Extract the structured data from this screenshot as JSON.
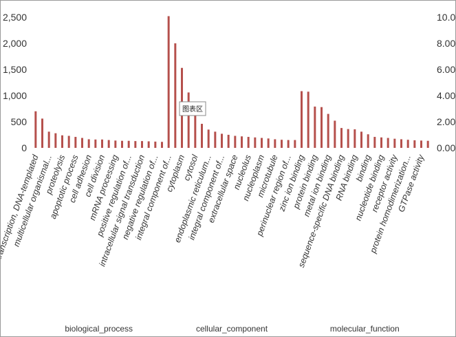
{
  "chart_data": {
    "type": "bar",
    "title": "",
    "xlabel": "",
    "ylabel": "",
    "ylim": [
      0,
      2500
    ],
    "y2lim": [
      0,
      10
    ],
    "y_ticks": [
      "0",
      "500",
      "1,000",
      "1,500",
      "2,000",
      "2,500"
    ],
    "y2_ticks": [
      "0.00",
      "2.00",
      "4.00",
      "6.00",
      "8.00",
      "10.00"
    ],
    "bar_color": "#b5504c",
    "categories": [
      "transcription, DNA-templated",
      "",
      "multicellular organismal...",
      "",
      "proteolysis",
      "",
      "apoptotic process",
      "",
      "cell adhesion",
      "",
      "cell division",
      "",
      "mRNA processing",
      "",
      "positive regulation of...",
      "",
      "intracellular signal transduction",
      "",
      "negative regulation of...",
      "",
      "integral component of...",
      "",
      "cytoplasm",
      "",
      "cytosol",
      "",
      "endoplasmic reticulum...",
      "",
      "integral component of...",
      "",
      "extracellular space",
      "",
      "nucleolus",
      "",
      "nucleoplasm",
      "",
      "microtubule",
      "",
      "perinuclear region of...",
      "",
      "zinc ion binding",
      "",
      "protein binding",
      "",
      "metal ion binding",
      "",
      "sequence-specific DNA binding",
      "",
      "RNA binding",
      "",
      "binding",
      "",
      "nucleotide binding",
      "",
      "receptor activity",
      "",
      "protein homodimerization...",
      "",
      "GTPase activity",
      ""
    ],
    "values": [
      700,
      560,
      310,
      280,
      240,
      230,
      210,
      190,
      165,
      160,
      160,
      150,
      140,
      135,
      135,
      130,
      130,
      125,
      120,
      115,
      2520,
      2000,
      1530,
      1060,
      620,
      460,
      350,
      310,
      270,
      250,
      230,
      220,
      210,
      200,
      190,
      180,
      165,
      155,
      150,
      150,
      1085,
      1075,
      790,
      780,
      650,
      520,
      380,
      360,
      355,
      310,
      260,
      210,
      200,
      190,
      175,
      165,
      155,
      145,
      140,
      135
    ],
    "groups": [
      {
        "name": "biological_process",
        "start": 0,
        "end": 19
      },
      {
        "name": "cellular_component",
        "start": 20,
        "end": 39
      },
      {
        "name": "molecular_function",
        "start": 40,
        "end": 59
      }
    ],
    "tooltip": "图表区",
    "grid": false,
    "legend": "none"
  }
}
